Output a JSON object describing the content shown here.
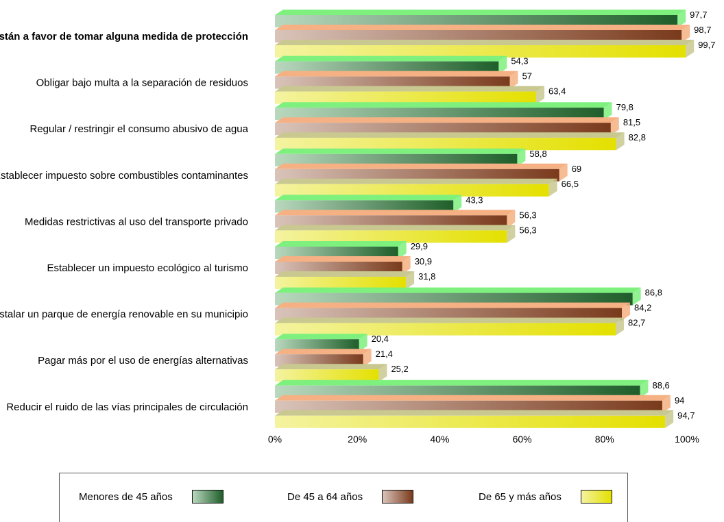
{
  "chart_data": {
    "type": "bar",
    "orientation": "horizontal",
    "style": "3d",
    "categories": [
      "Están a favor de tomar alguna medida de protección",
      "Obligar bajo multa a la separación de residuos",
      "Regular / restringir el consumo abusivo de agua",
      "Establecer impuesto sobre combustibles contaminantes",
      "Medidas restrictivas al uso del transporte privado",
      "Establecer un impuesto ecológico al turismo",
      "Instalar un parque de energía renovable en su municipio",
      "Pagar más por el uso de energías alternativas",
      "Reducir el ruido de las vías principales de circulación"
    ],
    "bold_categories": [
      0
    ],
    "series": [
      {
        "name": "Menores de 45 años",
        "values": [
          97.7,
          54.3,
          79.8,
          58.8,
          43.3,
          29.9,
          86.8,
          20.4,
          88.6
        ],
        "value_labels": [
          "97,7",
          "54,3",
          "79,8",
          "58,8",
          "43,3",
          "29,9",
          "86,8",
          "20,4",
          "88,6"
        ],
        "color_dark": "#1f5e2a",
        "color_light": "#b9d8be",
        "color_top": "#7ef07e"
      },
      {
        "name": "De 45 a 64 años",
        "values": [
          98.7,
          57,
          81.5,
          69,
          56.3,
          30.9,
          84.2,
          21.4,
          94
        ],
        "value_labels": [
          "98,7",
          "57",
          "81,5",
          "69",
          "56,3",
          "30,9",
          "84,2",
          "21,4",
          "94"
        ],
        "color_dark": "#7a3a1c",
        "color_light": "#d9c4ba",
        "color_top": "#f5b183"
      },
      {
        "name": "De 65 y más años",
        "values": [
          99.7,
          63.4,
          82.8,
          66.5,
          56.3,
          31.8,
          82.7,
          25.2,
          94.7
        ],
        "value_labels": [
          "99,7",
          "63,4",
          "82,8",
          "66,5",
          "56,3",
          "31,8",
          "82,7",
          "25,2",
          "94,7"
        ],
        "color_dark": "#e4e000",
        "color_light": "#f4f3a0",
        "color_top": "#c8c890"
      }
    ],
    "x_ticks": [
      "0%",
      "20%",
      "40%",
      "60%",
      "80%",
      "100%"
    ],
    "xlim": [
      0,
      100
    ],
    "grid": false,
    "legend_position": "bottom"
  }
}
